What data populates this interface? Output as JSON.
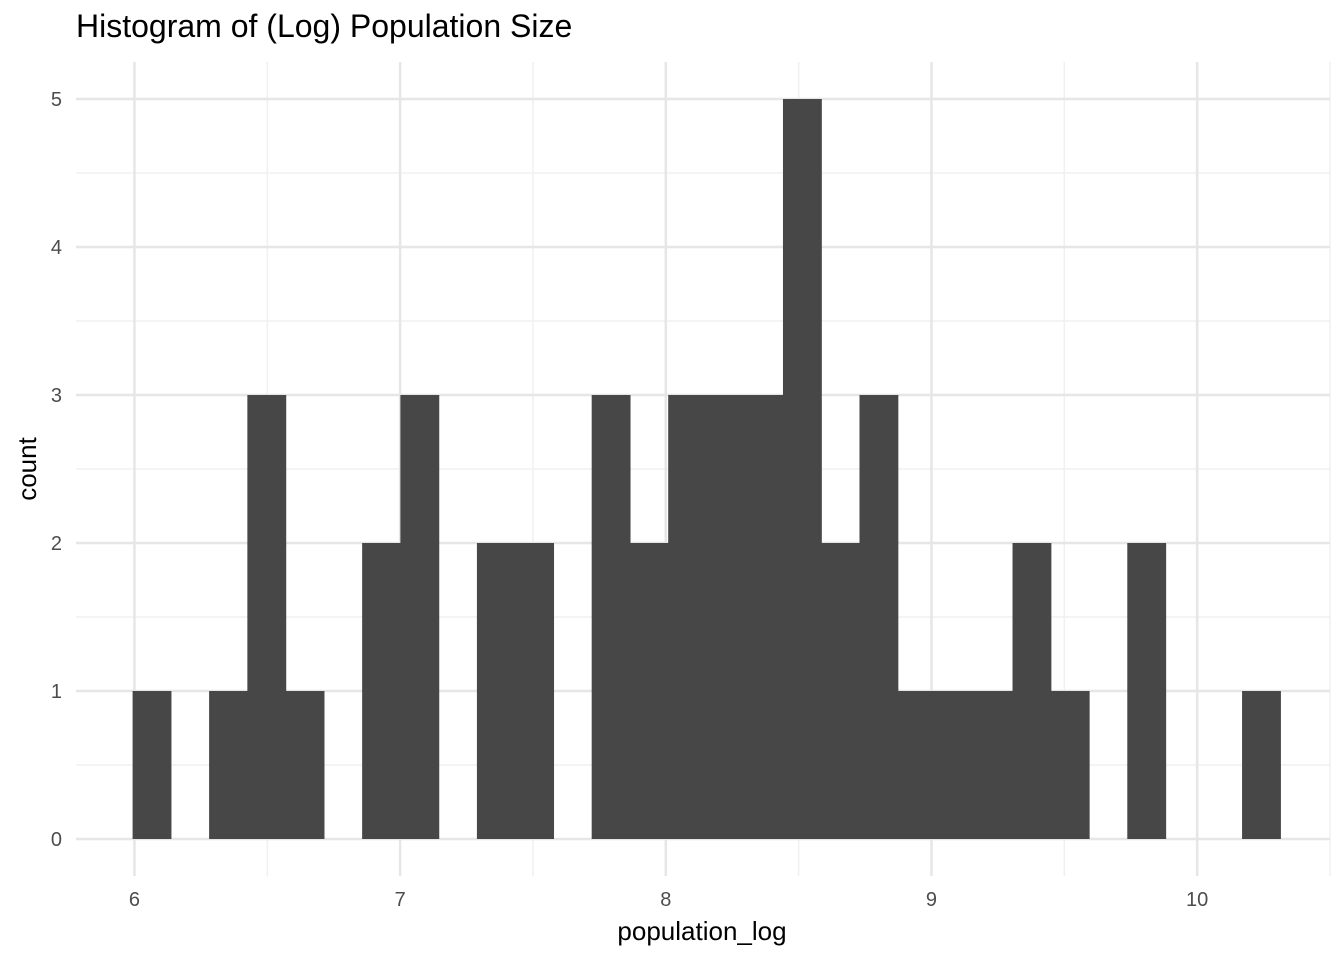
{
  "chart_data": {
    "type": "histogram",
    "title": "Histogram of (Log) Population Size",
    "xlabel": "population_log",
    "ylabel": "count",
    "bar_color": "#474747",
    "grid": true,
    "xlim": [
      5.78,
      10.5
    ],
    "ylim": [
      -0.25,
      5.25
    ],
    "x_ticks": [
      6,
      7,
      8,
      9,
      10
    ],
    "y_ticks": [
      0,
      1,
      2,
      3,
      4,
      5
    ],
    "bin_width": 0.144,
    "bins": [
      {
        "start": 5.993,
        "count": 1
      },
      {
        "start": 6.137,
        "count": 0
      },
      {
        "start": 6.281,
        "count": 1
      },
      {
        "start": 6.425,
        "count": 3
      },
      {
        "start": 6.569,
        "count": 1
      },
      {
        "start": 6.713,
        "count": 0
      },
      {
        "start": 6.857,
        "count": 2
      },
      {
        "start": 7.001,
        "count": 3
      },
      {
        "start": 7.145,
        "count": 0
      },
      {
        "start": 7.289,
        "count": 2
      },
      {
        "start": 7.433,
        "count": 2
      },
      {
        "start": 7.577,
        "count": 0
      },
      {
        "start": 7.721,
        "count": 3
      },
      {
        "start": 7.865,
        "count": 2
      },
      {
        "start": 8.009,
        "count": 3
      },
      {
        "start": 8.153,
        "count": 3
      },
      {
        "start": 8.297,
        "count": 3
      },
      {
        "start": 8.441,
        "count": 5
      },
      {
        "start": 8.585,
        "count": 2
      },
      {
        "start": 8.729,
        "count": 3
      },
      {
        "start": 8.873,
        "count": 1
      },
      {
        "start": 9.017,
        "count": 1
      },
      {
        "start": 9.161,
        "count": 1
      },
      {
        "start": 9.305,
        "count": 2
      },
      {
        "start": 9.449,
        "count": 1
      },
      {
        "start": 9.593,
        "count": 0
      },
      {
        "start": 9.737,
        "count": 2
      },
      {
        "start": 9.881,
        "count": 0
      },
      {
        "start": 10.025,
        "count": 0
      },
      {
        "start": 10.169,
        "count": 1
      }
    ]
  }
}
